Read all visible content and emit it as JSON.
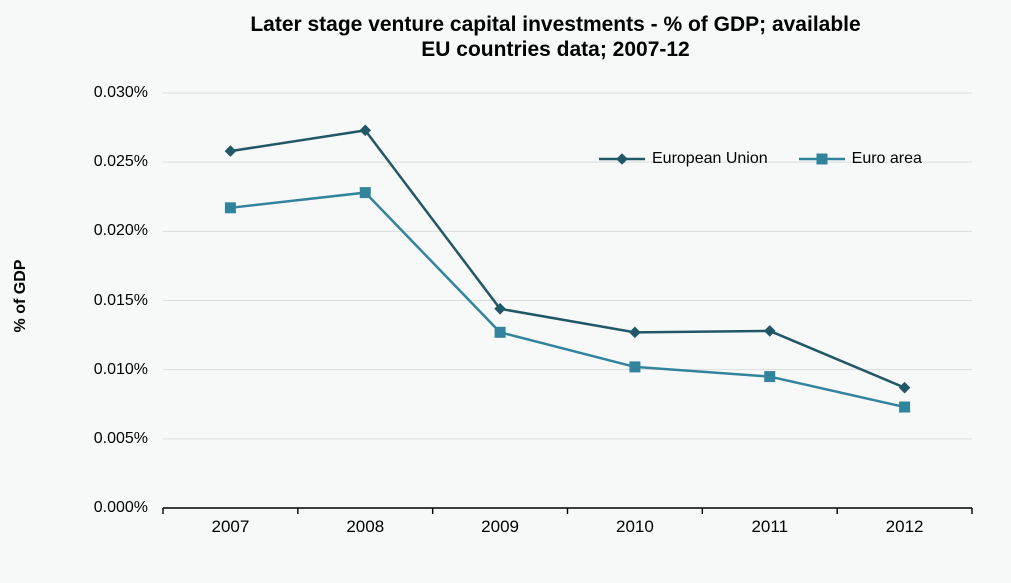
{
  "chart_data": {
    "type": "line",
    "title": "Later stage venture capital investments - % of GDP; available EU countries data; 2007-12",
    "title_lines": [
      "Later stage venture capital investments - % of GDP; available",
      "EU countries data; 2007-12"
    ],
    "ylabel": "% of GDP",
    "xlabel": "",
    "categories": [
      "2007",
      "2008",
      "2009",
      "2010",
      "2011",
      "2012"
    ],
    "series": [
      {
        "name": "European Union",
        "marker": "diamond",
        "color": "#215868",
        "values": [
          0.0258,
          0.0273,
          0.0144,
          0.0127,
          0.0128,
          0.0087
        ]
      },
      {
        "name": "Euro area",
        "marker": "square",
        "color": "#31849B",
        "values": [
          0.0217,
          0.0228,
          0.0127,
          0.0102,
          0.0095,
          0.0073
        ]
      }
    ],
    "unit": "% of GDP",
    "ylim": [
      0,
      0.03
    ],
    "ytick_step": 0.005,
    "ytick_labels": [
      "0.000%",
      "0.005%",
      "0.010%",
      "0.015%",
      "0.020%",
      "0.025%",
      "0.030%"
    ],
    "grid": true,
    "legend_position": "inside-top-right",
    "colors": {
      "gridline": "#D9DDDC",
      "axis": "#000000",
      "background": "#F7F9F8",
      "text": "#000000"
    }
  }
}
